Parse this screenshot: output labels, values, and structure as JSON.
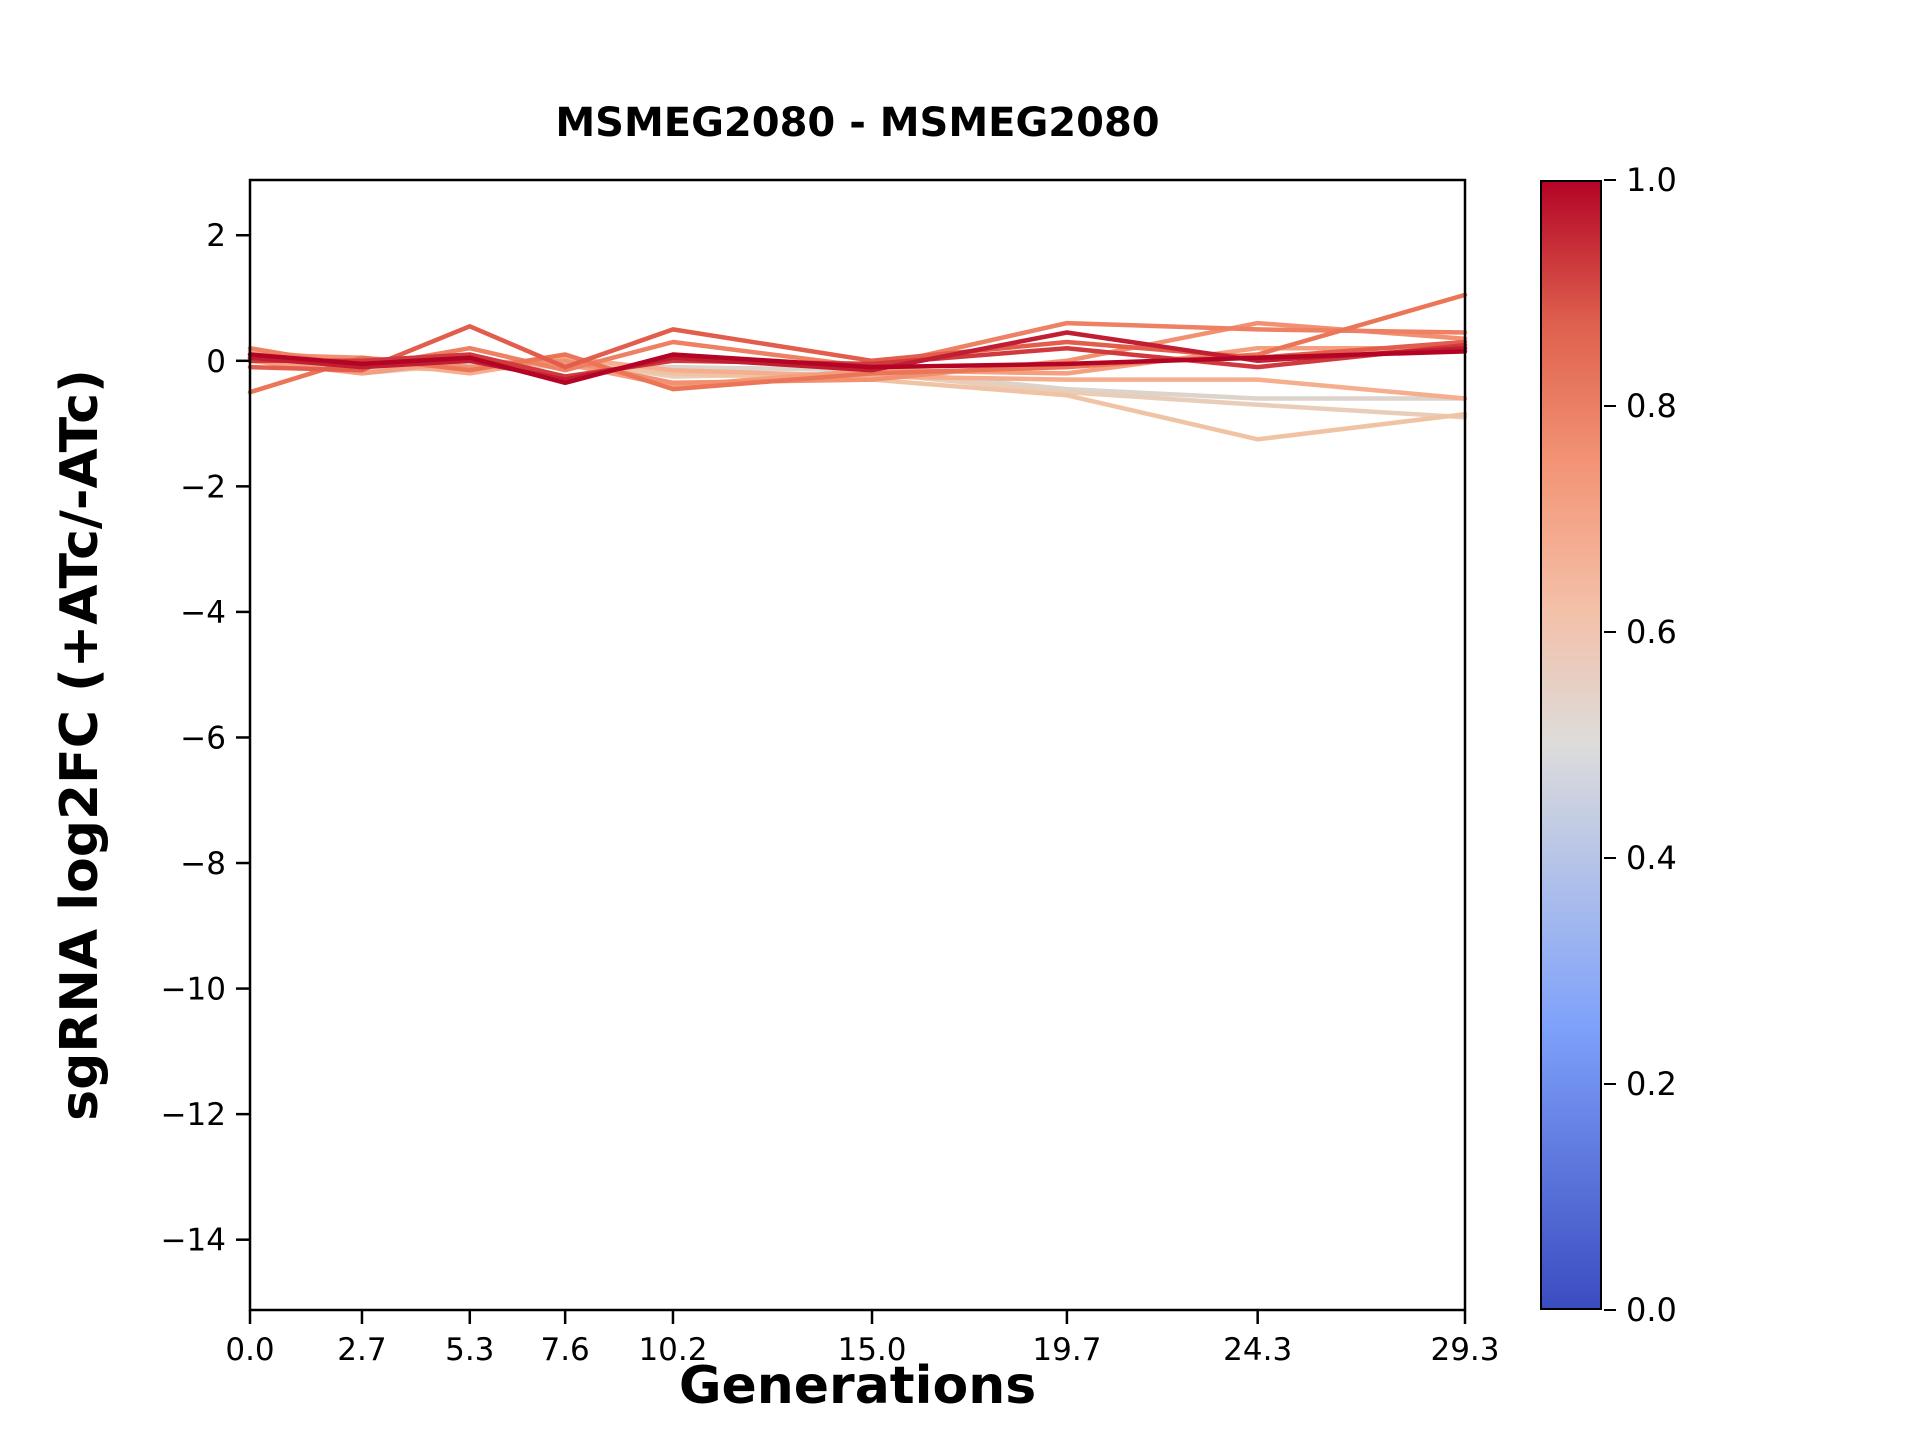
{
  "title": "MSMEG2080 - MSMEG2080",
  "xlabel": "Generations",
  "ylabel": "sgRNA log2FC (+ATc/-ATc)",
  "chart_data": {
    "type": "line",
    "title": "MSMEG2080 - MSMEG2080",
    "xlabel": "Generations",
    "ylabel": "sgRNA log2FC (+ATc/-ATc)",
    "xlim": [
      0,
      29.3
    ],
    "ylim": [
      -15.12,
      2.88
    ],
    "grid": false,
    "legend": "none (colorbar encodes line value 0-1, coolwarm colormap)",
    "x": [
      0.0,
      2.7,
      5.3,
      7.6,
      10.2,
      15.0,
      19.7,
      24.3,
      29.3
    ],
    "x_tick_labels": [
      "0.0",
      "2.7",
      "5.3",
      "7.6",
      "10.2",
      "15.0",
      "19.7",
      "24.3",
      "29.3"
    ],
    "y_tick_values": [
      2,
      0,
      -2,
      -4,
      -6,
      -8,
      -10,
      -12,
      -14
    ],
    "y_tick_labels": [
      "2",
      "0",
      "−2",
      "−4",
      "−6",
      "−8",
      "−10",
      "−12",
      "−14"
    ],
    "series": [
      {
        "c": 0.52,
        "color": "#DCD3CB",
        "values": [
          0.05,
          -0.2,
          -0.05,
          -0.1,
          -0.1,
          -0.15,
          -0.45,
          -0.6,
          -0.6
        ]
      },
      {
        "c": 0.56,
        "color": "#E9CDB9",
        "values": [
          0.1,
          -0.15,
          -0.1,
          0.0,
          -0.25,
          -0.2,
          -0.5,
          -0.7,
          -0.9
        ]
      },
      {
        "c": 0.6,
        "color": "#F0C3A5",
        "values": [
          0.0,
          -0.1,
          -0.15,
          -0.05,
          -0.2,
          -0.3,
          -0.55,
          -1.25,
          -0.85
        ]
      },
      {
        "c": 0.66,
        "color": "#F5AE8E",
        "values": [
          0.15,
          0.0,
          -0.2,
          0.05,
          -0.15,
          -0.25,
          -0.3,
          -0.3,
          -0.6
        ]
      },
      {
        "c": 0.7,
        "color": "#F49F80",
        "values": [
          0.0,
          -0.2,
          0.0,
          -0.05,
          -0.4,
          -0.15,
          -0.2,
          0.2,
          0.2
        ]
      },
      {
        "c": 0.74,
        "color": "#F29072",
        "values": [
          0.1,
          0.05,
          -0.1,
          0.0,
          -0.35,
          -0.3,
          0.0,
          0.6,
          0.35
        ]
      },
      {
        "c": 0.78,
        "color": "#EE8064",
        "values": [
          0.2,
          -0.1,
          0.2,
          -0.15,
          0.3,
          -0.1,
          0.6,
          0.5,
          0.45
        ]
      },
      {
        "c": 0.8,
        "color": "#EB7557",
        "values": [
          -0.5,
          0.05,
          -0.15,
          0.1,
          -0.45,
          -0.2,
          -0.1,
          0.1,
          1.05
        ]
      },
      {
        "c": 0.84,
        "color": "#E25D4B",
        "values": [
          -0.1,
          -0.15,
          0.55,
          -0.1,
          0.5,
          0.0,
          0.3,
          0.05,
          0.3
        ]
      },
      {
        "c": 0.9,
        "color": "#D03A3F",
        "values": [
          0.0,
          0.0,
          0.1,
          -0.25,
          0.0,
          -0.05,
          0.2,
          -0.1,
          0.25
        ]
      },
      {
        "c": 0.95,
        "color": "#C21E33",
        "values": [
          0.05,
          -0.1,
          0.0,
          -0.3,
          0.05,
          -0.15,
          0.45,
          0.0,
          0.2
        ]
      },
      {
        "c": 1.0,
        "color": "#B40426",
        "values": [
          0.1,
          -0.05,
          0.05,
          -0.35,
          0.1,
          -0.1,
          -0.05,
          0.05,
          0.15
        ]
      }
    ],
    "colorbar": {
      "orientation": "vertical",
      "cmap": "coolwarm",
      "tick_labels": [
        "1.0",
        "0.8",
        "0.6",
        "0.4",
        "0.2",
        "0.0"
      ],
      "tick_values": [
        1.0,
        0.8,
        0.6,
        0.4,
        0.2,
        0.0
      ],
      "gradient_stops": [
        {
          "pct": 0,
          "color": "#3B4CC0"
        },
        {
          "pct": 25,
          "color": "#7EA1FA"
        },
        {
          "pct": 50,
          "color": "#DDDCDB"
        },
        {
          "pct": 62.5,
          "color": "#F4BFA6"
        },
        {
          "pct": 75,
          "color": "#F39475"
        },
        {
          "pct": 87.5,
          "color": "#DE604D"
        },
        {
          "pct": 100,
          "color": "#B40426"
        }
      ]
    }
  }
}
